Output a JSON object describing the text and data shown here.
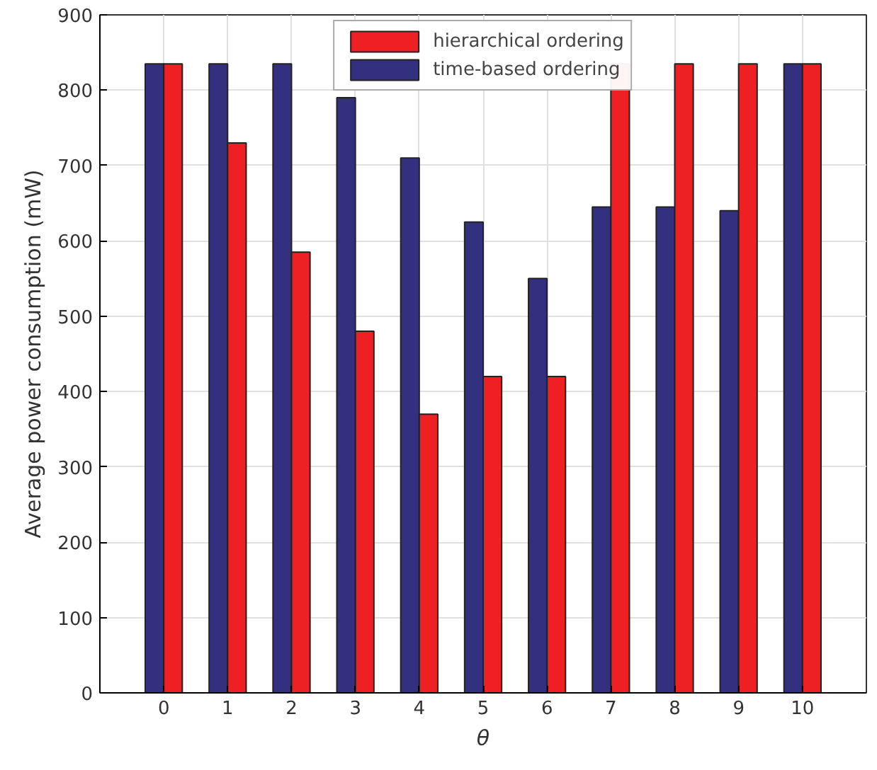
{
  "chart_data": {
    "type": "bar",
    "xlabel": "θ",
    "ylabel": "Average power consumption (mW)",
    "categories": [
      "0",
      "1",
      "2",
      "3",
      "4",
      "5",
      "6",
      "7",
      "8",
      "9",
      "10"
    ],
    "series": [
      {
        "name": "time-based ordering",
        "color": "#343080",
        "values": [
          835,
          835,
          835,
          790,
          710,
          625,
          550,
          645,
          645,
          640,
          835
        ]
      },
      {
        "name": "hierarchical ordering",
        "color": "#ee2024",
        "values": [
          835,
          730,
          585,
          480,
          370,
          420,
          420,
          835,
          835,
          835,
          835
        ]
      }
    ],
    "ylim": [
      0,
      900
    ],
    "yticks": [
      0,
      100,
      200,
      300,
      400,
      500,
      600,
      700,
      800,
      900
    ],
    "grid": true,
    "legend": "top"
  }
}
